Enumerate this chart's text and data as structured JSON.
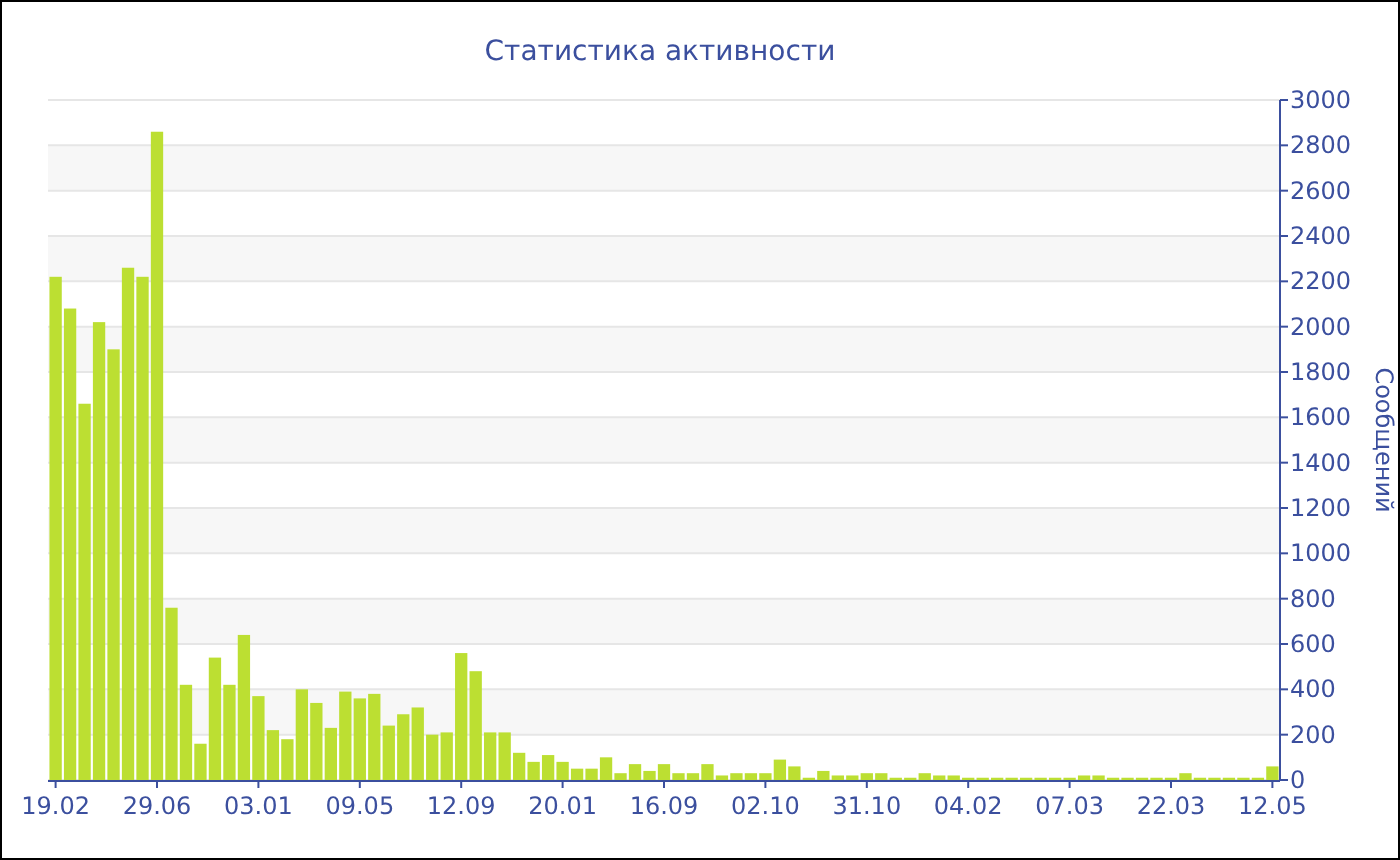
{
  "chart_data": {
    "type": "bar",
    "title": "Статистика активности",
    "ylabel": "Сообщений",
    "categories": [
      "19.02",
      null,
      null,
      null,
      null,
      null,
      null,
      "29.06",
      null,
      null,
      null,
      null,
      null,
      null,
      "03.01",
      null,
      null,
      null,
      null,
      null,
      null,
      "09.05",
      null,
      null,
      null,
      null,
      null,
      null,
      "12.09",
      null,
      null,
      null,
      null,
      null,
      null,
      "20.01",
      null,
      null,
      null,
      null,
      null,
      null,
      "16.09",
      null,
      null,
      null,
      null,
      null,
      null,
      "02.10",
      null,
      null,
      null,
      null,
      null,
      null,
      "31.10",
      null,
      null,
      null,
      null,
      null,
      null,
      "04.02",
      null,
      null,
      null,
      null,
      null,
      null,
      "07.03",
      null,
      null,
      null,
      null,
      null,
      null,
      "22.03",
      null,
      null,
      null,
      null,
      null,
      null,
      "12.05"
    ],
    "values": [
      2220,
      2080,
      1660,
      2020,
      1900,
      2260,
      2220,
      2860,
      760,
      420,
      160,
      540,
      420,
      640,
      370,
      220,
      180,
      400,
      340,
      230,
      390,
      360,
      380,
      240,
      290,
      320,
      200,
      210,
      560,
      480,
      210,
      210,
      120,
      80,
      110,
      80,
      50,
      50,
      100,
      30,
      70,
      40,
      70,
      30,
      30,
      70,
      20,
      30,
      30,
      30,
      90,
      60,
      10,
      40,
      20,
      20,
      30,
      30,
      10,
      10,
      30,
      20,
      20,
      10,
      10,
      10,
      10,
      10,
      10,
      10,
      10,
      20,
      20,
      10,
      10,
      10,
      10,
      10,
      30,
      10,
      10,
      10,
      10,
      10,
      60
    ],
    "color": "#bcdf32",
    "ylim": [
      0,
      3000
    ],
    "yticks": [
      0,
      200,
      400,
      600,
      800,
      1000,
      1200,
      1400,
      1600,
      1800,
      2000,
      2200,
      2400,
      2600,
      2800,
      3000
    ],
    "grid": "y"
  }
}
